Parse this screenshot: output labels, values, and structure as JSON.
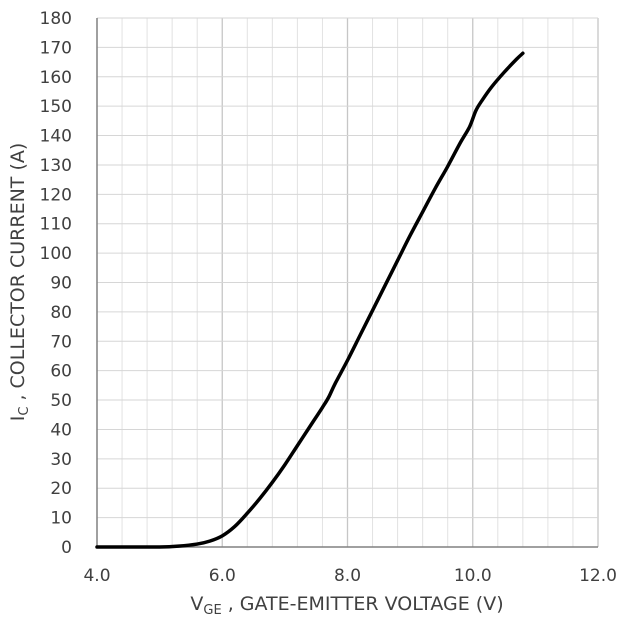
{
  "chart_data": {
    "type": "line",
    "xlabel": {
      "main": "V",
      "sub": "GE",
      "rest": " , GATE-EMITTER VOLTAGE (V)"
    },
    "ylabel": {
      "main": "I",
      "sub": "C",
      "rest": " , COLLECTOR CURRENT (A)"
    },
    "xlim": [
      4.0,
      12.0
    ],
    "ylim": [
      0,
      180
    ],
    "xticks": [
      "4.0",
      "6.0",
      "8.0",
      "10.0",
      "12.0"
    ],
    "yticks": [
      "0",
      "10",
      "20",
      "30",
      "40",
      "50",
      "60",
      "70",
      "80",
      "90",
      "100",
      "110",
      "120",
      "130",
      "140",
      "150",
      "160",
      "170",
      "180"
    ],
    "grid": true,
    "series": [
      {
        "color": "#000000",
        "x": [
          4.0,
          4.5,
          5.0,
          5.3,
          5.6,
          5.8,
          6.0,
          6.2,
          6.4,
          6.6,
          6.8,
          7.0,
          7.2,
          7.4,
          7.6,
          7.7,
          7.8,
          8.0,
          8.2,
          8.4,
          8.6,
          8.8,
          9.0,
          9.2,
          9.4,
          9.6,
          9.8,
          9.95,
          10.05,
          10.15,
          10.3,
          10.5,
          10.7,
          10.8
        ],
        "y": [
          0,
          0,
          0,
          0.3,
          1.0,
          2.0,
          3.8,
          7.0,
          11.5,
          16.5,
          22.0,
          28.0,
          34.5,
          41.0,
          47.5,
          51.0,
          55.5,
          63.5,
          72.0,
          80.5,
          89.0,
          97.5,
          106.0,
          114.0,
          122.0,
          129.5,
          137.5,
          143.0,
          148.5,
          152.0,
          156.5,
          161.5,
          166.0,
          168.0
        ]
      }
    ]
  }
}
